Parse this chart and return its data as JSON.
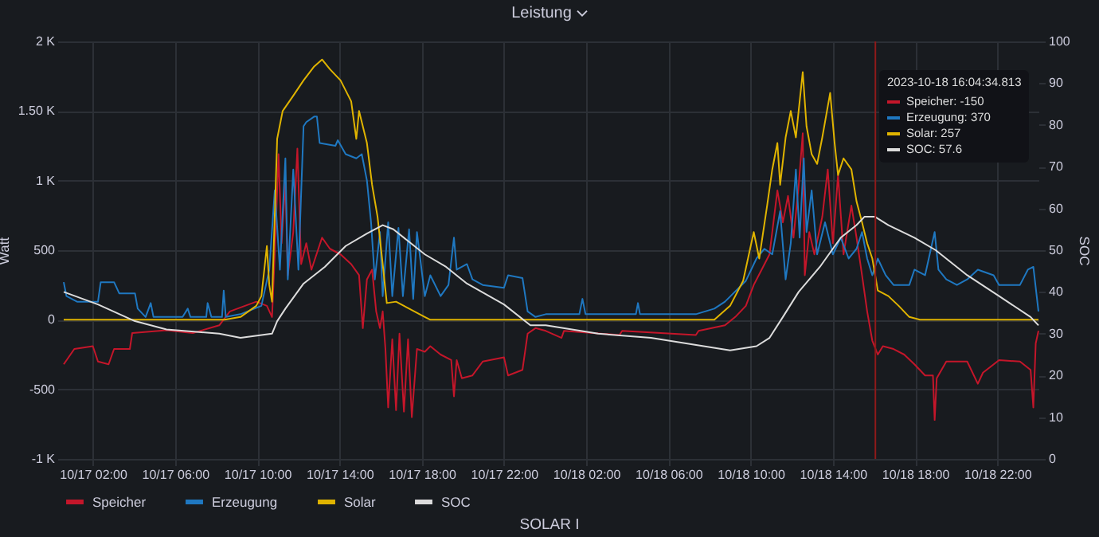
{
  "chart_data": {
    "type": "line",
    "title": "Leistung",
    "ylabel": "Watt",
    "y2label": "SOC",
    "xlim": [
      "2023-10-17T00:35",
      "2023-10-19T00:00"
    ],
    "xticks": [
      {
        "value": "2023-10-17T02:00",
        "label": "10/17 02:00"
      },
      {
        "value": "2023-10-17T06:00",
        "label": "10/17 06:00"
      },
      {
        "value": "2023-10-17T10:00",
        "label": "10/17 10:00"
      },
      {
        "value": "2023-10-17T14:00",
        "label": "10/17 14:00"
      },
      {
        "value": "2023-10-17T18:00",
        "label": "10/17 18:00"
      },
      {
        "value": "2023-10-17T22:00",
        "label": "10/17 22:00"
      },
      {
        "value": "2023-10-18T02:00",
        "label": "10/18 02:00"
      },
      {
        "value": "2023-10-18T06:00",
        "label": "10/18 06:00"
      },
      {
        "value": "2023-10-18T10:00",
        "label": "10/18 10:00"
      },
      {
        "value": "2023-10-18T14:00",
        "label": "10/18 14:00"
      },
      {
        "value": "2023-10-18T18:00",
        "label": "10/18 18:00"
      },
      {
        "value": "2023-10-18T22:00",
        "label": "10/18 22:00"
      }
    ],
    "ylim": [
      -1000,
      2000
    ],
    "yticks": [
      {
        "value": -1000,
        "label": "-1 K"
      },
      -500,
      0,
      500,
      {
        "value": 1000,
        "label": "1 K"
      },
      {
        "value": 1500,
        "label": "1.50 K"
      },
      {
        "value": 2000,
        "label": "2 K"
      }
    ],
    "y2lim": [
      0,
      100
    ],
    "y2ticks": [
      0,
      10,
      20,
      30,
      40,
      50,
      60,
      70,
      80,
      90,
      100
    ],
    "grid": true,
    "legend": "bottom",
    "ref_lines": [
      {
        "axis": "x",
        "value": "2023-10-18T16:04",
        "color": "#8f1a1a"
      }
    ],
    "annotations": [
      "2023-10-18 16:04:34.813",
      "Speicher: -150",
      "Erzeugung: 370",
      "Solar: 257",
      "SOC: 57.6",
      "SOLAR I"
    ],
    "series": [
      {
        "name": "Speicher",
        "color": "#c4162a",
        "x": [
          "2023-10-17T00:35",
          "2023-10-17T01:06",
          "2023-10-17T02:00",
          "2023-10-17T02:15",
          "2023-10-17T02:46",
          "2023-10-17T03:02",
          "2023-10-17T03:48",
          "2023-10-17T03:55",
          "2023-10-17T05:35",
          "2023-10-17T06:52",
          "2023-10-17T08:09",
          "2023-10-17T08:40",
          "2023-10-17T09:57",
          "2023-10-17T10:28",
          "2023-10-17T10:43",
          "2023-10-17T10:51",
          "2023-10-17T11:02",
          "2023-10-17T11:11",
          "2023-10-17T11:22",
          "2023-10-17T11:29",
          "2023-10-17T11:45",
          "2023-10-17T11:57",
          "2023-10-17T12:08",
          "2023-10-17T12:23",
          "2023-10-17T12:38",
          "2023-10-17T13:09",
          "2023-10-17T13:32",
          "2023-10-17T14:03",
          "2023-10-17T14:34",
          "2023-10-17T14:57",
          "2023-10-17T15:08",
          "2023-10-17T15:20",
          "2023-10-17T15:35",
          "2023-10-17T15:47",
          "2023-10-17T15:58",
          "2023-10-17T16:06",
          "2023-10-17T16:14",
          "2023-10-17T16:22",
          "2023-10-17T16:34",
          "2023-10-17T16:45",
          "2023-10-17T16:55",
          "2023-10-17T17:08",
          "2023-10-17T17:20",
          "2023-10-17T17:31",
          "2023-10-17T17:46",
          "2023-10-17T18:09",
          "2023-10-17T18:25",
          "2023-10-17T18:55",
          "2023-10-17T19:26",
          "2023-10-17T19:34",
          "2023-10-17T19:42",
          "2023-10-17T19:57",
          "2023-10-17T20:28",
          "2023-10-17T20:58",
          "2023-10-17T22:00",
          "2023-10-17T22:12",
          "2023-10-17T22:54",
          "2023-10-17T23:09",
          "2023-10-17T23:32",
          "2023-10-18T00:02",
          "2023-10-18T00:48",
          "2023-10-18T00:55",
          "2023-10-18T03:37",
          "2023-10-18T03:45",
          "2023-10-18T07:20",
          "2023-10-18T07:28",
          "2023-10-18T08:45",
          "2023-10-18T09:15",
          "2023-10-18T09:46",
          "2023-10-18T10:09",
          "2023-10-18T10:32",
          "2023-10-18T10:55",
          "2023-10-18T11:18",
          "2023-10-18T11:34",
          "2023-10-18T11:49",
          "2023-10-18T12:05",
          "2023-10-18T12:20",
          "2023-10-18T12:32",
          "2023-10-18T12:38",
          "2023-10-18T12:51",
          "2023-10-18T13:06",
          "2023-10-18T13:29",
          "2023-10-18T13:45",
          "2023-10-18T14:00",
          "2023-10-18T14:15",
          "2023-10-18T14:31",
          "2023-10-18T14:54",
          "2023-10-18T15:09",
          "2023-10-18T15:25",
          "2023-10-18T15:40",
          "2023-10-18T15:55",
          "2023-10-18T16:11",
          "2023-10-18T16:26",
          "2023-10-18T16:57",
          "2023-10-18T17:28",
          "2023-10-18T17:58",
          "2023-10-18T18:29",
          "2023-10-18T18:52",
          "2023-10-18T18:57",
          "2023-10-18T19:03",
          "2023-10-18T19:31",
          "2023-10-18T20:32",
          "2023-10-18T21:03",
          "2023-10-18T21:18",
          "2023-10-18T22:05",
          "2023-10-18T23:06",
          "2023-10-18T23:37",
          "2023-10-18T23:45",
          "2023-10-18T23:52",
          "2023-10-19T00:00"
        ],
        "values": [
          -320,
          -210,
          -190,
          -300,
          -320,
          -210,
          -210,
          -95,
          -75,
          -95,
          -40,
          60,
          130,
          100,
          20,
          470,
          1190,
          550,
          1000,
          320,
          630,
          1230,
          400,
          550,
          360,
          590,
          510,
          470,
          400,
          320,
          -60,
          290,
          360,
          60,
          -60,
          60,
          -210,
          -630,
          -140,
          -650,
          -100,
          -660,
          -140,
          -700,
          -210,
          -230,
          -190,
          -250,
          -290,
          -550,
          -290,
          -420,
          -400,
          -300,
          -270,
          -400,
          -360,
          -100,
          -60,
          -80,
          -130,
          -80,
          -110,
          -80,
          -110,
          -80,
          -40,
          20,
          100,
          250,
          360,
          470,
          930,
          700,
          890,
          590,
          960,
          1340,
          320,
          630,
          470,
          740,
          1080,
          550,
          1040,
          470,
          820,
          590,
          320,
          60,
          -150,
          -250,
          -190,
          -210,
          -250,
          -320,
          -400,
          -400,
          -720,
          -420,
          -300,
          -300,
          -460,
          -380,
          -290,
          -300,
          -360,
          -630,
          -170,
          -80
        ]
      },
      {
        "name": "Erzeugung",
        "color": "#1f78c1",
        "x": [
          "2023-10-17T00:35",
          "2023-10-17T00:43",
          "2023-10-17T01:14",
          "2023-10-17T02:15",
          "2023-10-17T02:23",
          "2023-10-17T03:02",
          "2023-10-17T03:17",
          "2023-10-17T04:03",
          "2023-10-17T04:11",
          "2023-10-17T04:34",
          "2023-10-17T04:49",
          "2023-10-17T04:57",
          "2023-10-17T06:22",
          "2023-10-17T06:37",
          "2023-10-17T06:45",
          "2023-10-17T07:31",
          "2023-10-17T07:35",
          "2023-10-17T07:46",
          "2023-10-17T08:17",
          "2023-10-17T08:22",
          "2023-10-17T08:28",
          "2023-10-17T09:11",
          "2023-10-17T10:12",
          "2023-10-17T10:35",
          "2023-10-17T10:51",
          "2023-10-17T11:06",
          "2023-10-17T11:22",
          "2023-10-17T11:29",
          "2023-10-17T11:45",
          "2023-10-17T12:00",
          "2023-10-17T12:15",
          "2023-10-17T12:23",
          "2023-10-17T12:46",
          "2023-10-17T12:54",
          "2023-10-17T13:02",
          "2023-10-17T13:48",
          "2023-10-17T13:55",
          "2023-10-17T14:18",
          "2023-10-17T14:49",
          "2023-10-17T15:05",
          "2023-10-17T15:20",
          "2023-10-17T15:32",
          "2023-10-17T15:43",
          "2023-10-17T15:58",
          "2023-10-17T16:06",
          "2023-10-17T16:22",
          "2023-10-17T16:34",
          "2023-10-17T16:52",
          "2023-10-17T17:05",
          "2023-10-17T17:23",
          "2023-10-17T17:35",
          "2023-10-17T17:46",
          "2023-10-17T18:09",
          "2023-10-17T18:25",
          "2023-10-17T18:55",
          "2023-10-17T19:18",
          "2023-10-17T19:34",
          "2023-10-17T19:42",
          "2023-10-17T20:12",
          "2023-10-17T20:28",
          "2023-10-17T20:58",
          "2023-10-17T22:00",
          "2023-10-17T22:12",
          "2023-10-17T22:54",
          "2023-10-17T23:09",
          "2023-10-17T23:32",
          "2023-10-18T00:02",
          "2023-10-18T01:40",
          "2023-10-18T01:49",
          "2023-10-18T01:58",
          "2023-10-18T04:25",
          "2023-10-18T04:31",
          "2023-10-18T04:37",
          "2023-10-18T07:20",
          "2023-10-18T08:14",
          "2023-10-18T08:45",
          "2023-10-18T09:46",
          "2023-10-18T10:17",
          "2023-10-18T10:40",
          "2023-10-18T11:03",
          "2023-10-18T11:26",
          "2023-10-18T11:42",
          "2023-10-18T11:57",
          "2023-10-18T12:12",
          "2023-10-18T12:23",
          "2023-10-18T12:35",
          "2023-10-18T12:43",
          "2023-10-18T12:58",
          "2023-10-18T13:14",
          "2023-10-18T13:37",
          "2023-10-18T14:00",
          "2023-10-18T14:23",
          "2023-10-18T14:46",
          "2023-10-18T15:09",
          "2023-10-18T15:25",
          "2023-10-18T15:40",
          "2023-10-18T15:55",
          "2023-10-18T16:11",
          "2023-10-18T16:34",
          "2023-10-18T16:57",
          "2023-10-18T17:43",
          "2023-10-18T17:58",
          "2023-10-18T18:29",
          "2023-10-18T18:57",
          "2023-10-18T19:08",
          "2023-10-18T19:31",
          "2023-10-18T20:02",
          "2023-10-18T20:32",
          "2023-10-18T21:03",
          "2023-10-18T21:49",
          "2023-10-18T22:05",
          "2023-10-18T23:06",
          "2023-10-18T23:29",
          "2023-10-18T23:45",
          "2023-10-19T00:00"
        ],
        "values": [
          270,
          170,
          130,
          130,
          270,
          270,
          190,
          190,
          80,
          20,
          120,
          20,
          20,
          80,
          20,
          20,
          120,
          20,
          20,
          210,
          20,
          40,
          100,
          360,
          930,
          360,
          1160,
          290,
          1080,
          360,
          1390,
          1420,
          1460,
          1460,
          1270,
          1250,
          1290,
          1190,
          1160,
          1190,
          1000,
          700,
          290,
          630,
          170,
          700,
          170,
          660,
          170,
          650,
          150,
          630,
          170,
          320,
          170,
          250,
          590,
          360,
          400,
          290,
          250,
          230,
          320,
          300,
          60,
          20,
          40,
          40,
          150,
          40,
          40,
          120,
          40,
          40,
          80,
          130,
          280,
          440,
          510,
          470,
          780,
          290,
          550,
          1080,
          590,
          1160,
          630,
          930,
          470,
          700,
          470,
          590,
          440,
          510,
          630,
          440,
          320,
          440,
          320,
          250,
          250,
          360,
          320,
          630,
          360,
          290,
          250,
          290,
          360,
          320,
          250,
          250,
          360,
          380,
          60
        ]
      },
      {
        "name": "Solar",
        "color": "#e0b400",
        "x": [
          "2023-10-17T00:35",
          "2023-10-17T08:25",
          "2023-10-17T09:11",
          "2023-10-17T09:57",
          "2023-10-17T10:12",
          "2023-10-17T10:28",
          "2023-10-17T10:35",
          "2023-10-17T10:43",
          "2023-10-17T10:58",
          "2023-10-17T11:14",
          "2023-10-17T11:45",
          "2023-10-17T12:15",
          "2023-10-17T12:46",
          "2023-10-17T13:09",
          "2023-10-17T13:32",
          "2023-10-17T14:03",
          "2023-10-17T14:34",
          "2023-10-17T14:49",
          "2023-10-17T14:57",
          "2023-10-17T15:20",
          "2023-10-17T15:35",
          "2023-10-17T15:51",
          "2023-10-17T16:06",
          "2023-10-17T16:18",
          "2023-10-17T16:45",
          "2023-10-17T17:23",
          "2023-10-17T18:09",
          "2023-10-17T18:25",
          "2023-10-18T08:14",
          "2023-10-18T09:00",
          "2023-10-18T09:38",
          "2023-10-18T10:09",
          "2023-10-18T10:25",
          "2023-10-18T10:48",
          "2023-10-18T11:03",
          "2023-10-18T11:18",
          "2023-10-18T11:26",
          "2023-10-18T11:42",
          "2023-10-18T11:57",
          "2023-10-18T12:12",
          "2023-10-18T12:20",
          "2023-10-18T12:32",
          "2023-10-18T12:43",
          "2023-10-18T12:58",
          "2023-10-18T13:14",
          "2023-10-18T13:29",
          "2023-10-18T13:52",
          "2023-10-18T14:05",
          "2023-10-18T14:15",
          "2023-10-18T14:31",
          "2023-10-18T14:54",
          "2023-10-18T15:09",
          "2023-10-18T15:25",
          "2023-10-18T15:40",
          "2023-10-18T15:55",
          "2023-10-18T16:11",
          "2023-10-18T16:42",
          "2023-10-18T17:12",
          "2023-10-18T17:43",
          "2023-10-18T18:14",
          "2023-10-19T00:00"
        ],
        "values": [
          0,
          0,
          20,
          100,
          170,
          530,
          250,
          130,
          1300,
          1500,
          1610,
          1720,
          1820,
          1870,
          1800,
          1720,
          1570,
          1300,
          1500,
          1270,
          970,
          740,
          400,
          120,
          130,
          80,
          20,
          0,
          0,
          100,
          280,
          630,
          440,
          820,
          1080,
          1270,
          970,
          1310,
          1500,
          1310,
          1500,
          1780,
          1390,
          1190,
          1120,
          1310,
          1630,
          1270,
          1040,
          1160,
          1080,
          850,
          700,
          550,
          440,
          210,
          170,
          100,
          20,
          0,
          0
        ]
      },
      {
        "name": "SOC",
        "color": "#dcdcdc",
        "axis": "y2",
        "x": [
          "2023-10-17T00:35",
          "2023-10-17T02:15",
          "2023-10-17T04:03",
          "2023-10-17T05:35",
          "2023-10-17T08:09",
          "2023-10-17T09:11",
          "2023-10-17T10:43",
          "2023-10-17T10:58",
          "2023-10-17T11:22",
          "2023-10-17T12:15",
          "2023-10-17T13:17",
          "2023-10-17T14:18",
          "2023-10-17T15:20",
          "2023-10-17T16:06",
          "2023-10-17T16:37",
          "2023-10-17T18:09",
          "2023-10-17T19:11",
          "2023-10-17T20:12",
          "2023-10-17T22:00",
          "2023-10-17T23:17",
          "2023-10-18T00:02",
          "2023-10-18T02:35",
          "2023-10-18T05:09",
          "2023-10-18T07:43",
          "2023-10-18T09:00",
          "2023-10-18T10:17",
          "2023-10-18T10:55",
          "2023-10-18T11:34",
          "2023-10-18T12:20",
          "2023-10-18T13:22",
          "2023-10-18T14:23",
          "2023-10-18T15:09",
          "2023-10-18T15:32",
          "2023-10-18T16:03",
          "2023-10-18T16:42",
          "2023-10-18T17:58",
          "2023-10-18T19:00",
          "2023-10-18T20:32",
          "2023-10-18T22:05",
          "2023-10-18T23:37",
          "2023-10-19T00:00"
        ],
        "values": [
          40,
          37,
          33,
          31,
          30,
          29,
          30,
          33,
          36,
          42,
          46,
          51,
          54,
          56,
          55,
          49,
          46,
          42,
          37,
          32,
          32,
          30,
          29,
          27,
          26,
          27,
          29,
          34,
          40,
          46,
          53,
          56,
          58,
          58,
          56,
          53,
          50,
          44,
          39,
          34,
          32
        ]
      }
    ]
  }
}
